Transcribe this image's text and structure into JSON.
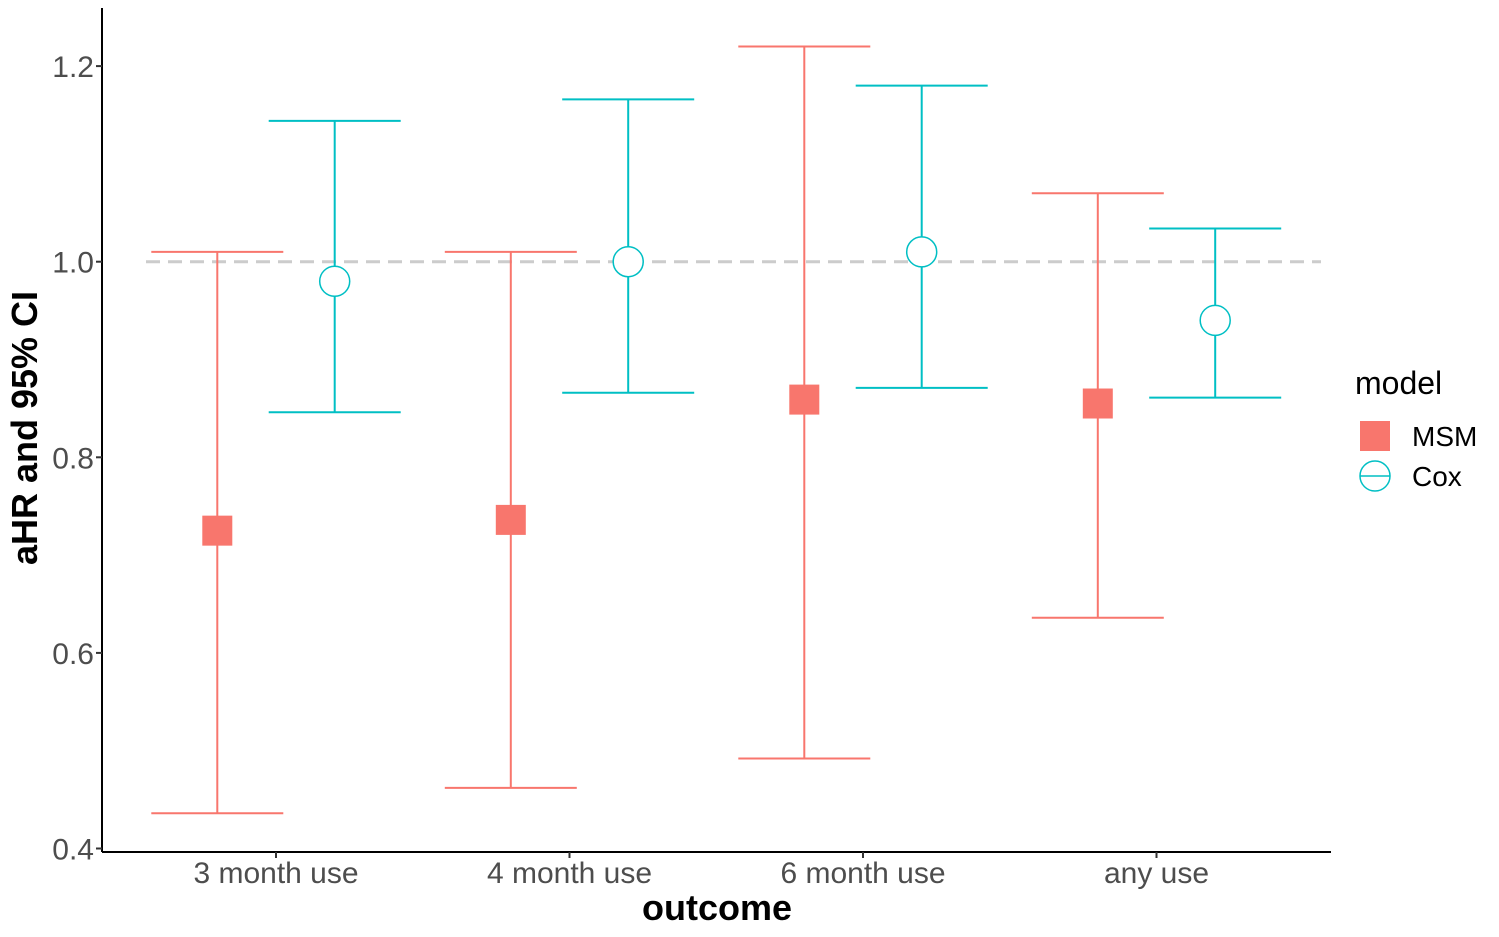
{
  "chart_data": {
    "type": "scatter",
    "xlabel": "outcome",
    "ylabel": "aHR and 95% CI",
    "categories": [
      "3 month use",
      "4 month use",
      "6 month use",
      "any use"
    ],
    "ylim": [
      0.4,
      1.26
    ],
    "yticks": [
      "0.4",
      "0.6",
      "0.8",
      "1.0",
      "1.2"
    ],
    "reference_line": 1.0,
    "grid": false,
    "legend": {
      "title": "model",
      "position": "right"
    },
    "series": [
      {
        "name": "MSM",
        "marker": "square",
        "color": "#F8766D",
        "estimate": [
          0.725,
          0.736,
          0.859,
          0.855
        ],
        "lower": [
          0.436,
          0.462,
          0.492,
          0.636
        ],
        "upper": [
          1.01,
          1.01,
          1.22,
          1.07
        ]
      },
      {
        "name": "Cox",
        "marker": "open-circle",
        "color": "#00BFC4",
        "estimate": [
          0.98,
          1.0,
          1.01,
          0.94
        ],
        "lower": [
          0.846,
          0.866,
          0.871,
          0.861
        ],
        "upper": [
          1.144,
          1.166,
          1.18,
          1.034
        ]
      }
    ]
  }
}
